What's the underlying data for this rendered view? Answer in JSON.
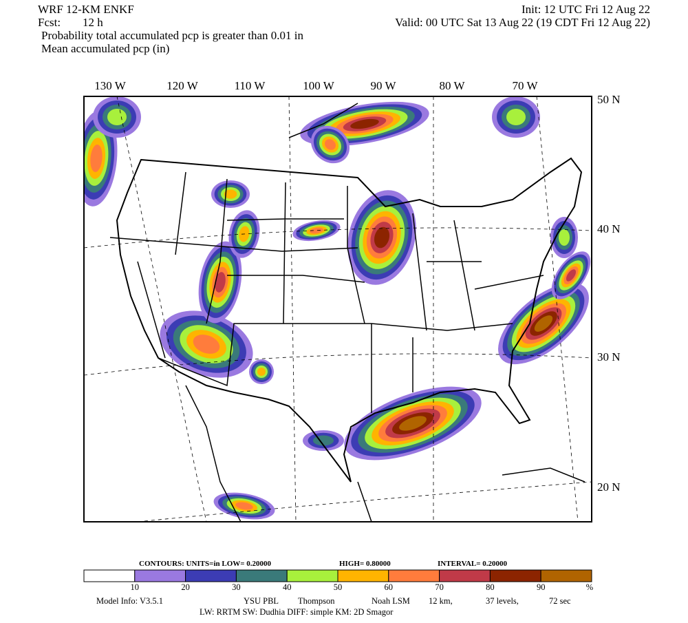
{
  "header": {
    "model": "WRF 12-KM ENKF",
    "init": "Init: 12 UTC Fri 12 Aug 22",
    "fcst_label": "Fcst:",
    "fcst": "12 h",
    "valid": "Valid: 00 UTC Sat 13 Aug 22 (19 CDT Fri 12 Aug 22)",
    "line1": "Probability total accumulated pcp is greater than 0.01 in",
    "line2": "Mean accumulated pcp (in)"
  },
  "map": {
    "lon_labels": [
      "130 W",
      "120 W",
      "110 W",
      "100 W",
      "90 W",
      "80 W",
      "70 W"
    ],
    "lat_labels": [
      "50 N",
      "40 N",
      "30 N",
      "20 N"
    ]
  },
  "colorbar": {
    "contours": "CONTOURS:  UNITS=in  LOW= 0.20000",
    "high": "HIGH= 0.80000",
    "interval": "INTERVAL= 0.20000",
    "colors": [
      "#ffffff",
      "#9a79e0",
      "#3c3cb4",
      "#3a7a7a",
      "#a8f03c",
      "#ffb400",
      "#ff7c3c",
      "#c03a48",
      "#8c2400",
      "#b06400"
    ],
    "labels": [
      "10",
      "20",
      "30",
      "40",
      "50",
      "60",
      "70",
      "80",
      "90",
      "%"
    ]
  },
  "footer": {
    "model_info": "Model Info: V3.5.1",
    "pbl": "YSU PBL",
    "mp": "Thompson",
    "lsm": "Noah LSM",
    "res": "12 km,",
    "levels": "37 levels,",
    "dt": "72 sec",
    "line2": "LW: RRTM SW: Dudhia  DIFF: simple KM: 2D Smagor"
  }
}
